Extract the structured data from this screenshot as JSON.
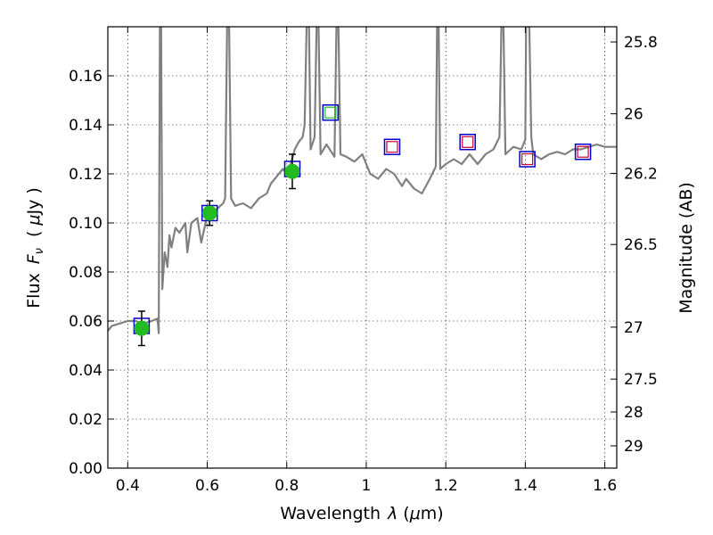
{
  "chart_data": {
    "type": "line",
    "xlabel_text": "Wavelength",
    "xlabel_symbol": "λ",
    "xlabel_unit_open": "(",
    "xlabel_unit_mu": "μ",
    "xlabel_unit_rest": "m)",
    "ylabel_text": "Flux",
    "ylabel_symbol": "F",
    "ylabel_subscript": "ν",
    "ylabel_unit_open": "(",
    "ylabel_unit_mu": "μ",
    "ylabel_unit_rest": "Jy",
    "ylabel_unit_close": ")",
    "y2label": "Magnitude (AB)",
    "xlim": [
      0.35,
      1.63
    ],
    "ylim": [
      0.0,
      0.18
    ],
    "grid": true,
    "x_ticks": [
      {
        "value": 0.4,
        "label": "0.4"
      },
      {
        "value": 0.6,
        "label": "0.6"
      },
      {
        "value": 0.8,
        "label": "0.8"
      },
      {
        "value": 1.0,
        "label": "1"
      },
      {
        "value": 1.2,
        "label": "1.2"
      },
      {
        "value": 1.4,
        "label": "1.4"
      },
      {
        "value": 1.6,
        "label": "1.6"
      }
    ],
    "y_ticks": [
      {
        "value": 0.0,
        "label": "0.00"
      },
      {
        "value": 0.02,
        "label": "0.02"
      },
      {
        "value": 0.04,
        "label": "0.04"
      },
      {
        "value": 0.06,
        "label": "0.06"
      },
      {
        "value": 0.08,
        "label": "0.08"
      },
      {
        "value": 0.1,
        "label": "0.10"
      },
      {
        "value": 0.12,
        "label": "0.12"
      },
      {
        "value": 0.14,
        "label": "0.14"
      },
      {
        "value": 0.16,
        "label": "0.16"
      }
    ],
    "y2_ticks": [
      {
        "flux": 0.1738,
        "label": "25.8"
      },
      {
        "flux": 0.1445,
        "label": "26"
      },
      {
        "flux": 0.1202,
        "label": "26.2"
      },
      {
        "flux": 0.0912,
        "label": "26.5"
      },
      {
        "flux": 0.0575,
        "label": "27"
      },
      {
        "flux": 0.0363,
        "label": "27.5"
      },
      {
        "flux": 0.0229,
        "label": "28"
      },
      {
        "flux": 0.0091,
        "label": "29"
      }
    ],
    "model_spectrum": {
      "color": "#808080",
      "points": [
        [
          0.35,
          0.056
        ],
        [
          0.36,
          0.058
        ],
        [
          0.38,
          0.059
        ],
        [
          0.4,
          0.06
        ],
        [
          0.42,
          0.06
        ],
        [
          0.44,
          0.059
        ],
        [
          0.46,
          0.06
        ],
        [
          0.475,
          0.061
        ],
        [
          0.478,
          0.055
        ],
        [
          0.481,
          0.18
        ],
        [
          0.484,
          0.18
        ],
        [
          0.487,
          0.073
        ],
        [
          0.493,
          0.088
        ],
        [
          0.5,
          0.082
        ],
        [
          0.505,
          0.095
        ],
        [
          0.51,
          0.09
        ],
        [
          0.52,
          0.098
        ],
        [
          0.53,
          0.096
        ],
        [
          0.545,
          0.1
        ],
        [
          0.55,
          0.088
        ],
        [
          0.56,
          0.1
        ],
        [
          0.575,
          0.102
        ],
        [
          0.585,
          0.092
        ],
        [
          0.6,
          0.103
        ],
        [
          0.62,
          0.105
        ],
        [
          0.64,
          0.108
        ],
        [
          0.645,
          0.11
        ],
        [
          0.65,
          0.18
        ],
        [
          0.655,
          0.18
        ],
        [
          0.66,
          0.11
        ],
        [
          0.67,
          0.107
        ],
        [
          0.69,
          0.108
        ],
        [
          0.71,
          0.106
        ],
        [
          0.73,
          0.11
        ],
        [
          0.75,
          0.112
        ],
        [
          0.76,
          0.116
        ],
        [
          0.77,
          0.118
        ],
        [
          0.78,
          0.12
        ],
        [
          0.79,
          0.122
        ],
        [
          0.8,
          0.12
        ],
        [
          0.81,
          0.124
        ],
        [
          0.82,
          0.13
        ],
        [
          0.83,
          0.133
        ],
        [
          0.84,
          0.135
        ],
        [
          0.845,
          0.14
        ],
        [
          0.85,
          0.18
        ],
        [
          0.856,
          0.18
        ],
        [
          0.86,
          0.13
        ],
        [
          0.87,
          0.135
        ],
        [
          0.875,
          0.18
        ],
        [
          0.88,
          0.18
        ],
        [
          0.885,
          0.128
        ],
        [
          0.9,
          0.132
        ],
        [
          0.92,
          0.127
        ],
        [
          0.925,
          0.18
        ],
        [
          0.93,
          0.18
        ],
        [
          0.935,
          0.128
        ],
        [
          0.95,
          0.127
        ],
        [
          0.97,
          0.125
        ],
        [
          0.99,
          0.128
        ],
        [
          1.01,
          0.12
        ],
        [
          1.03,
          0.118
        ],
        [
          1.05,
          0.122
        ],
        [
          1.07,
          0.12
        ],
        [
          1.09,
          0.115
        ],
        [
          1.1,
          0.118
        ],
        [
          1.12,
          0.114
        ],
        [
          1.14,
          0.112
        ],
        [
          1.16,
          0.118
        ],
        [
          1.175,
          0.123
        ],
        [
          1.178,
          0.18
        ],
        [
          1.182,
          0.18
        ],
        [
          1.186,
          0.122
        ],
        [
          1.2,
          0.124
        ],
        [
          1.22,
          0.126
        ],
        [
          1.24,
          0.124
        ],
        [
          1.26,
          0.128
        ],
        [
          1.28,
          0.124
        ],
        [
          1.3,
          0.128
        ],
        [
          1.32,
          0.13
        ],
        [
          1.335,
          0.135
        ],
        [
          1.34,
          0.18
        ],
        [
          1.345,
          0.18
        ],
        [
          1.35,
          0.128
        ],
        [
          1.37,
          0.131
        ],
        [
          1.39,
          0.13
        ],
        [
          1.4,
          0.134
        ],
        [
          1.402,
          0.18
        ],
        [
          1.41,
          0.18
        ],
        [
          1.415,
          0.135
        ],
        [
          1.42,
          0.128
        ],
        [
          1.44,
          0.126
        ],
        [
          1.46,
          0.128
        ],
        [
          1.48,
          0.129
        ],
        [
          1.5,
          0.128
        ],
        [
          1.52,
          0.13
        ],
        [
          1.54,
          0.13
        ],
        [
          1.56,
          0.131
        ],
        [
          1.58,
          0.132
        ],
        [
          1.6,
          0.131
        ],
        [
          1.63,
          0.131
        ]
      ]
    },
    "observed_points": {
      "color": "#22bb22",
      "points": [
        {
          "x": 0.435,
          "y": 0.057,
          "yerr_low": 0.05,
          "yerr_high": 0.064
        },
        {
          "x": 0.606,
          "y": 0.104,
          "yerr_low": 0.099,
          "yerr_high": 0.109
        },
        {
          "x": 0.814,
          "y": 0.121,
          "yerr_low": 0.114,
          "yerr_high": 0.128
        }
      ]
    },
    "model_photometry": {
      "color": "#0000cc",
      "points": [
        {
          "x": 0.435,
          "y": 0.058
        },
        {
          "x": 0.606,
          "y": 0.104
        },
        {
          "x": 0.814,
          "y": 0.122
        },
        {
          "x": 0.91,
          "y": 0.145
        },
        {
          "x": 1.065,
          "y": 0.131
        },
        {
          "x": 1.255,
          "y": 0.133
        },
        {
          "x": 1.405,
          "y": 0.126
        },
        {
          "x": 1.545,
          "y": 0.129
        }
      ]
    },
    "upper_limit_points": {
      "color": "#cc0033",
      "points": [
        {
          "x": 1.065,
          "y": 0.131
        },
        {
          "x": 1.255,
          "y": 0.133
        },
        {
          "x": 1.405,
          "y": 0.126
        },
        {
          "x": 1.545,
          "y": 0.129
        }
      ]
    },
    "extra_marker": {
      "color": "#22bb22",
      "x": 0.91,
      "y": 0.145
    }
  }
}
